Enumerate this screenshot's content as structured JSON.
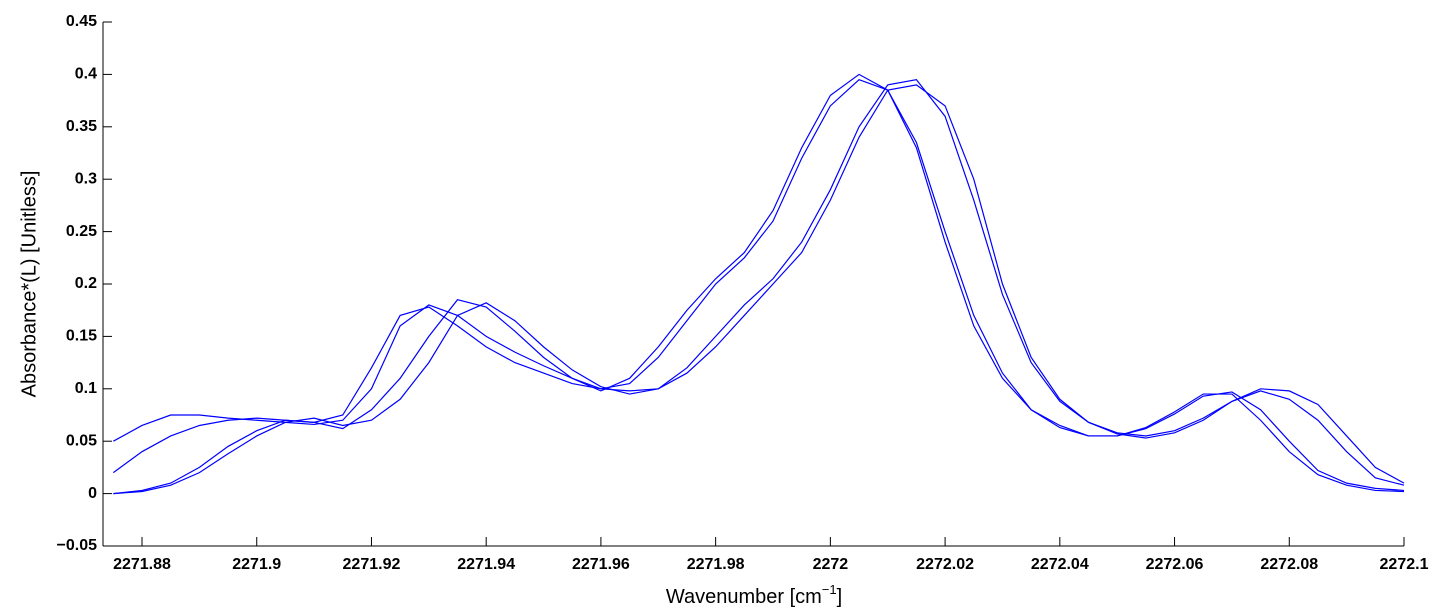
{
  "chart_data": {
    "type": "line",
    "y_label": "Absorbance*(L) [Unitless]",
    "x_label": {
      "text": "Wavenumber [cm",
      "superscript": "−1",
      "suffix": "]"
    },
    "x": [
      2271.875,
      2271.88,
      2271.885,
      2271.89,
      2271.895,
      2271.9,
      2271.905,
      2271.91,
      2271.915,
      2271.92,
      2271.925,
      2271.93,
      2271.935,
      2271.94,
      2271.945,
      2271.95,
      2271.955,
      2271.96,
      2271.965,
      2271.97,
      2271.975,
      2271.98,
      2271.985,
      2271.99,
      2271.995,
      2272.0,
      2272.005,
      2272.01,
      2272.015,
      2272.02,
      2272.025,
      2272.03,
      2272.035,
      2272.04,
      2272.045,
      2272.05,
      2272.055,
      2272.06,
      2272.065,
      2272.07,
      2272.075,
      2272.08,
      2272.085,
      2272.09,
      2272.095,
      2272.1
    ],
    "series": [
      {
        "color": "#0000ff",
        "values": [
          0.0,
          0.003,
          0.01,
          0.025,
          0.045,
          0.06,
          0.07,
          0.068,
          0.062,
          0.08,
          0.11,
          0.15,
          0.185,
          0.178,
          0.155,
          0.13,
          0.11,
          0.098,
          0.11,
          0.14,
          0.175,
          0.205,
          0.23,
          0.27,
          0.33,
          0.38,
          0.4,
          0.385,
          0.33,
          0.24,
          0.16,
          0.11,
          0.08,
          0.065,
          0.055,
          0.055,
          0.063,
          0.078,
          0.095,
          0.095,
          0.07,
          0.04,
          0.018,
          0.008,
          0.003,
          0.002
        ]
      },
      {
        "color": "#0000ff",
        "values": [
          0.05,
          0.065,
          0.075,
          0.075,
          0.072,
          0.07,
          0.068,
          0.066,
          0.07,
          0.1,
          0.16,
          0.18,
          0.17,
          0.15,
          0.135,
          0.122,
          0.11,
          0.1,
          0.105,
          0.13,
          0.165,
          0.2,
          0.225,
          0.26,
          0.32,
          0.37,
          0.395,
          0.385,
          0.335,
          0.25,
          0.17,
          0.115,
          0.08,
          0.063,
          0.055,
          0.055,
          0.062,
          0.076,
          0.093,
          0.097,
          0.08,
          0.05,
          0.022,
          0.01,
          0.005,
          0.003
        ]
      },
      {
        "color": "#0000ff",
        "values": [
          0.0,
          0.002,
          0.008,
          0.02,
          0.038,
          0.055,
          0.068,
          0.072,
          0.065,
          0.07,
          0.09,
          0.125,
          0.17,
          0.182,
          0.165,
          0.14,
          0.118,
          0.102,
          0.095,
          0.1,
          0.12,
          0.15,
          0.18,
          0.205,
          0.24,
          0.29,
          0.35,
          0.39,
          0.395,
          0.36,
          0.28,
          0.19,
          0.125,
          0.088,
          0.068,
          0.058,
          0.055,
          0.06,
          0.072,
          0.088,
          0.098,
          0.09,
          0.07,
          0.04,
          0.015,
          0.008
        ]
      },
      {
        "color": "#0000ff",
        "values": [
          0.02,
          0.04,
          0.055,
          0.065,
          0.07,
          0.072,
          0.07,
          0.068,
          0.075,
          0.12,
          0.17,
          0.178,
          0.16,
          0.14,
          0.125,
          0.115,
          0.105,
          0.1,
          0.098,
          0.1,
          0.115,
          0.14,
          0.17,
          0.2,
          0.23,
          0.28,
          0.34,
          0.385,
          0.39,
          0.37,
          0.3,
          0.2,
          0.13,
          0.09,
          0.068,
          0.057,
          0.053,
          0.058,
          0.07,
          0.088,
          0.1,
          0.098,
          0.085,
          0.055,
          0.025,
          0.01
        ]
      }
    ],
    "xlim": [
      2271.8732,
      2272.1
    ],
    "xticks": [
      2271.88,
      2271.9,
      2271.92,
      2271.94,
      2271.96,
      2271.98,
      2272,
      2272.02,
      2272.04,
      2272.06,
      2272.08,
      2272.1
    ],
    "ylim": [
      -0.05,
      0.45
    ],
    "yticks": [
      {
        "value": -0.05,
        "label": "−0.05"
      },
      0,
      0.05,
      0.1,
      0.15,
      0.2,
      0.25,
      0.3,
      0.35,
      0.4,
      0.45
    ],
    "grid": false
  }
}
